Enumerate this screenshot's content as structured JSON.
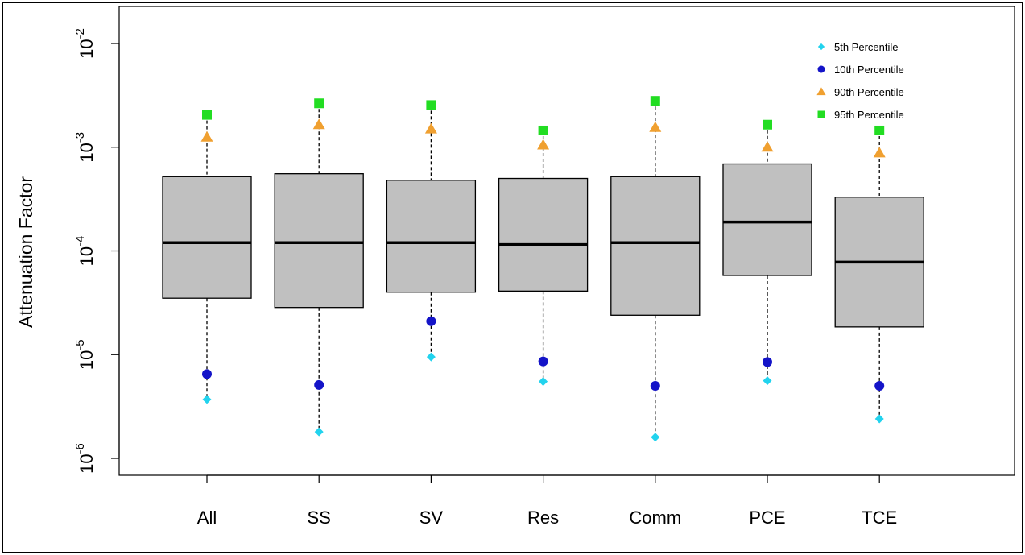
{
  "chart_data": {
    "type": "boxplot",
    "ylabel": "Attenuation Factor",
    "yscale": "log",
    "ylim": [
      1e-06,
      0.01
    ],
    "yticks": [
      {
        "value": 0.01,
        "base": "10",
        "exp": "-2"
      },
      {
        "value": 0.001,
        "base": "10",
        "exp": "-3"
      },
      {
        "value": 0.0001,
        "base": "10",
        "exp": "-4"
      },
      {
        "value": 1e-05,
        "base": "10",
        "exp": "-5"
      },
      {
        "value": 1e-06,
        "base": "10",
        "exp": "-6"
      }
    ],
    "categories": [
      "All",
      "SS",
      "SV",
      "Res",
      "Comm",
      "PCE",
      "TCE"
    ],
    "boxes": [
      {
        "category": "All",
        "whisker_low": 3.7e-06,
        "q1": 3.5e-05,
        "median": 0.00012,
        "q3": 0.00052,
        "whisker_high": 0.00205
      },
      {
        "category": "SS",
        "whisker_low": 1.8e-06,
        "q1": 2.85e-05,
        "median": 0.00012,
        "q3": 0.000555,
        "whisker_high": 0.00265
      },
      {
        "category": "SV",
        "whisker_low": 9.5e-06,
        "q1": 4e-05,
        "median": 0.00012,
        "q3": 0.00048,
        "whisker_high": 0.00255
      },
      {
        "category": "Res",
        "whisker_low": 5.5e-06,
        "q1": 4.1e-05,
        "median": 0.000115,
        "q3": 0.0005,
        "whisker_high": 0.00145
      },
      {
        "category": "Comm",
        "whisker_low": 1.6e-06,
        "q1": 2.4e-05,
        "median": 0.00012,
        "q3": 0.00052,
        "whisker_high": 0.0028
      },
      {
        "category": "PCE",
        "whisker_low": 5.6e-06,
        "q1": 5.8e-05,
        "median": 0.00019,
        "q3": 0.00069,
        "whisker_high": 0.00165
      },
      {
        "category": "TCE",
        "whisker_low": 2.4e-06,
        "q1": 1.85e-05,
        "median": 7.8e-05,
        "q3": 0.00033,
        "whisker_high": 0.00145
      }
    ],
    "series": [
      {
        "name": "5th Percentile",
        "color": "#22d3ee",
        "marker": "diamond",
        "values": [
          3.7e-06,
          1.8e-06,
          9.5e-06,
          5.5e-06,
          1.6e-06,
          5.6e-06,
          2.4e-06
        ]
      },
      {
        "name": "10th Percentile",
        "color": "#1414c8",
        "marker": "circle",
        "values": [
          6.5e-06,
          5.1e-06,
          2.1e-05,
          8.6e-06,
          5e-06,
          8.5e-06,
          5e-06
        ]
      },
      {
        "name": "90th Percentile",
        "color": "#f0a030",
        "marker": "triangle",
        "values": [
          0.00125,
          0.00165,
          0.0015,
          0.00105,
          0.00155,
          0.001,
          0.00088
        ]
      },
      {
        "name": "95th Percentile",
        "color": "#22dd22",
        "marker": "square",
        "values": [
          0.00205,
          0.00265,
          0.00255,
          0.00145,
          0.0028,
          0.00165,
          0.00145
        ]
      }
    ],
    "legend_position": "top-right",
    "box_fill": "#c0c0c0",
    "grid": false
  }
}
